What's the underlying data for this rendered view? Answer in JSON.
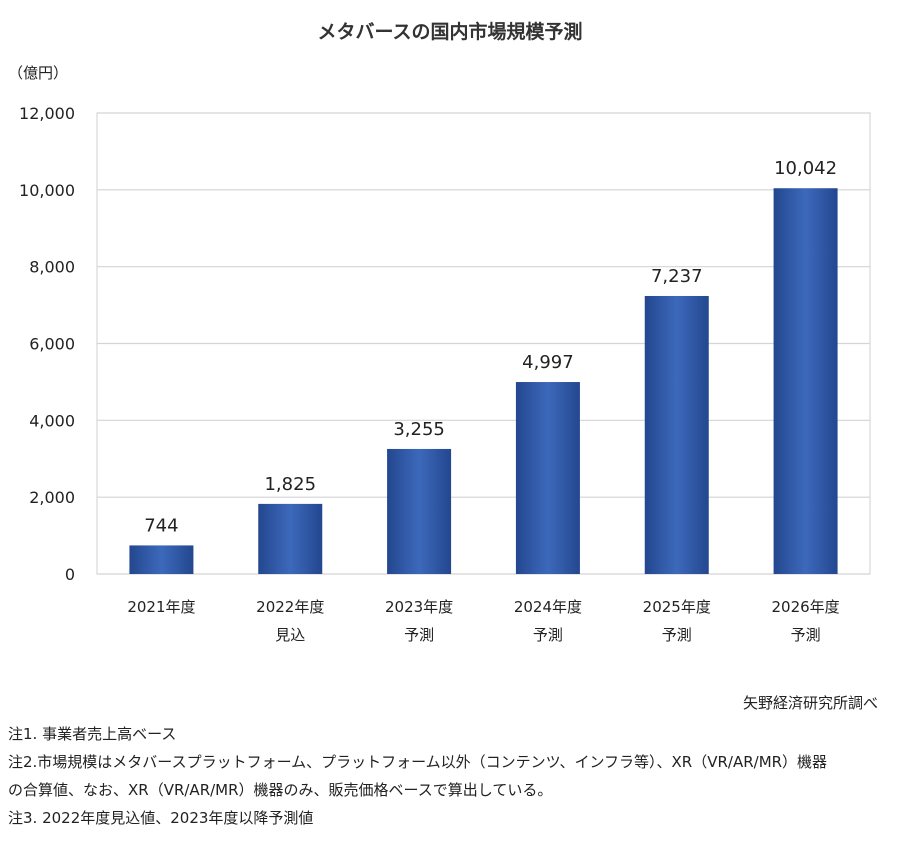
{
  "chart_data": {
    "type": "bar",
    "title": "メタバースの国内市場規模予測",
    "ylabel": "（億円）",
    "xlabel": "",
    "ylim": [
      0,
      12000
    ],
    "yticks": [
      0,
      2000,
      4000,
      6000,
      8000,
      10000,
      12000
    ],
    "ytick_labels": [
      "0",
      "2,000",
      "4,000",
      "6,000",
      "8,000",
      "10,000",
      "12,000"
    ],
    "grid": true,
    "categories": [
      [
        "2021年度",
        ""
      ],
      [
        "2022年度",
        "見込"
      ],
      [
        "2023年度",
        "予測"
      ],
      [
        "2024年度",
        "予測"
      ],
      [
        "2025年度",
        "予測"
      ],
      [
        "2026年度",
        "予測"
      ]
    ],
    "values": [
      744,
      1825,
      3255,
      4997,
      7237,
      10042
    ],
    "data_labels": [
      "744",
      "1,825",
      "3,255",
      "4,997",
      "7,237",
      "10,042"
    ],
    "bar_color": "#2f5aa8"
  },
  "source": "矢野経済研究所調べ",
  "notes": [
    "注1. 事業者売上高ベース",
    "注2.市場規模はメタバースプラットフォーム、プラットフォーム以外（コンテンツ、インフラ等）、XR（VR/AR/MR）機器",
    "の合算値、なお、XR（VR/AR/MR）機器のみ、販売価格ベースで算出している。",
    "注3. 2022年度見込値、2023年度以降予測値"
  ]
}
